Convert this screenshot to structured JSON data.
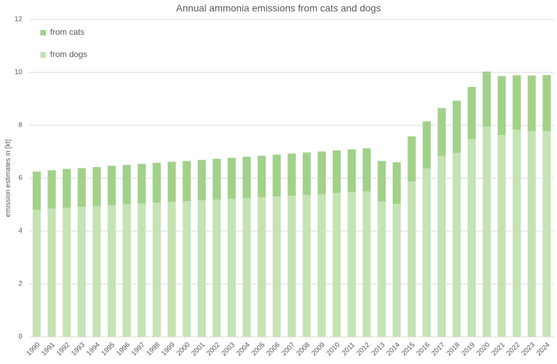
{
  "chart_data": {
    "type": "stacked-bar",
    "title": "Annual ammonia emissions from cats and dogs",
    "y_label": "emission estimates in [kt]",
    "categories": [
      "1990",
      "1991",
      "1992",
      "1993",
      "1994",
      "1995",
      "1996",
      "1997",
      "1998",
      "1999",
      "2000",
      "2001",
      "2002",
      "2003",
      "2004",
      "2005",
      "2006",
      "2007",
      "2008",
      "2009",
      "2010",
      "2011",
      "2012",
      "2013",
      "2014",
      "2015",
      "2016",
      "2017",
      "2018",
      "2019",
      "2020",
      "2021",
      "2022",
      "2023",
      "2024"
    ],
    "series": [
      {
        "name": "from dogs",
        "color": "#c5e3b5",
        "values": [
          4.8,
          4.85,
          4.88,
          4.92,
          4.95,
          4.98,
          5.01,
          5.04,
          5.07,
          5.1,
          5.13,
          5.16,
          5.19,
          5.22,
          5.25,
          5.28,
          5.31,
          5.34,
          5.37,
          5.4,
          5.44,
          5.47,
          5.5,
          5.12,
          5.03,
          5.87,
          6.37,
          6.83,
          6.96,
          7.48,
          7.95,
          7.63,
          7.83,
          7.78,
          7.78
        ]
      },
      {
        "name": "from cats",
        "color": "#a2d18a",
        "values": [
          1.45,
          1.45,
          1.47,
          1.46,
          1.47,
          1.49,
          1.49,
          1.5,
          1.51,
          1.52,
          1.52,
          1.53,
          1.54,
          1.55,
          1.56,
          1.57,
          1.58,
          1.59,
          1.6,
          1.61,
          1.61,
          1.62,
          1.63,
          1.53,
          1.57,
          1.71,
          1.78,
          1.82,
          1.97,
          1.97,
          2.08,
          2.23,
          2.06,
          2.1,
          2.12
        ]
      }
    ],
    "ylim": [
      0,
      12
    ],
    "yticks": [
      0,
      2,
      4,
      6,
      8,
      10,
      12
    ],
    "grid": true
  }
}
